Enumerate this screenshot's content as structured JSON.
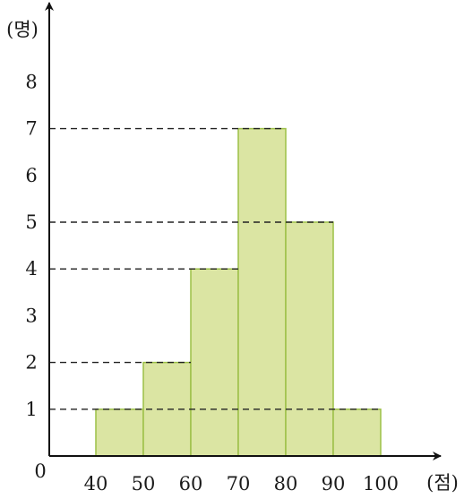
{
  "chart_data": {
    "type": "bar",
    "subtype": "histogram",
    "bins": [
      {
        "from": 40,
        "to": 50,
        "count": 1
      },
      {
        "from": 50,
        "to": 60,
        "count": 2
      },
      {
        "from": 60,
        "to": 70,
        "count": 4
      },
      {
        "from": 70,
        "to": 80,
        "count": 7
      },
      {
        "from": 80,
        "to": 90,
        "count": 5
      },
      {
        "from": 90,
        "to": 100,
        "count": 1
      }
    ],
    "x_ticks": [
      "40",
      "50",
      "60",
      "70",
      "80",
      "90",
      "100"
    ],
    "x_tick_values": [
      40,
      50,
      60,
      70,
      80,
      90,
      100
    ],
    "y_ticks": [
      "1",
      "2",
      "3",
      "4",
      "5",
      "6",
      "7",
      "8"
    ],
    "y_tick_values": [
      1,
      2,
      3,
      4,
      5,
      6,
      7,
      8
    ],
    "origin_label": "0",
    "xlabel": "(점)",
    "ylabel": "(명)",
    "dashed_guides_at": [
      1,
      2,
      4,
      5,
      7
    ],
    "xlim": [
      30,
      100
    ],
    "ylim": [
      0,
      8
    ],
    "grid": false,
    "bar_fill_color": "#dbe5a3",
    "bar_edge_color": "#9cc047"
  }
}
